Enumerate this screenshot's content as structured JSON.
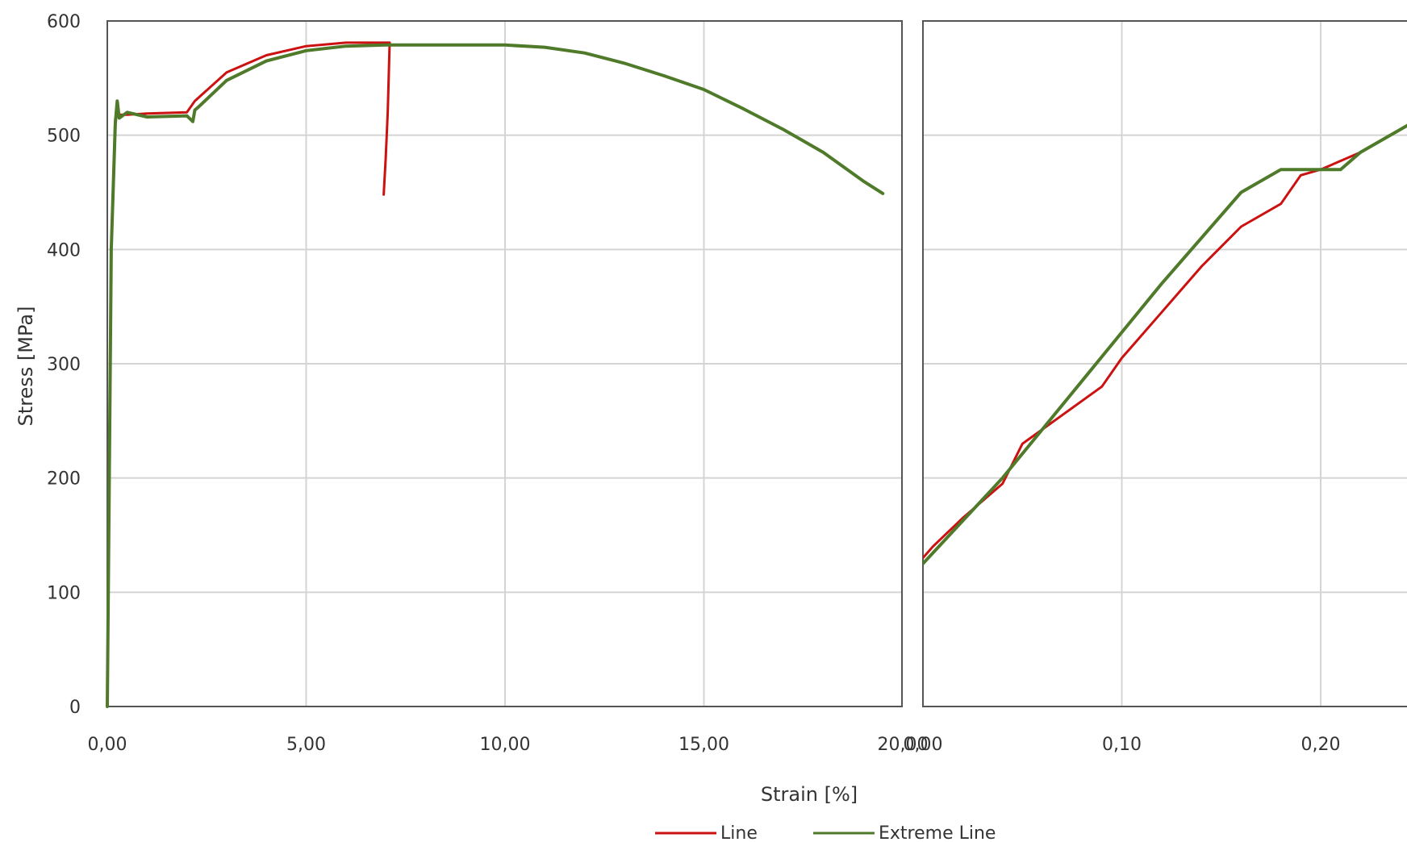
{
  "colors": {
    "line": "#cc1111",
    "extreme": "#4e7a2a",
    "grid": "#d4d4d4",
    "frame": "#555555"
  },
  "chart_data": [
    {
      "type": "line",
      "title": "",
      "xlabel": "Strain [%]",
      "ylabel": "Stress [MPa]",
      "xlim": [
        0,
        20
      ],
      "ylim": [
        0,
        600
      ],
      "xticks": [
        "0,00",
        "5,00",
        "10,00",
        "15,00",
        "20,00"
      ],
      "yticks": [
        "0",
        "100",
        "200",
        "300",
        "400",
        "500",
        "600"
      ],
      "grid": true,
      "series": [
        {
          "name": "Line",
          "x": [
            0,
            0.1,
            0.2,
            0.3,
            0.5,
            1,
            2,
            2.2,
            3,
            4,
            5,
            6,
            7,
            7.1,
            7.05,
            7.0,
            6.95
          ],
          "y": [
            0,
            400,
            515,
            518,
            518,
            519,
            520,
            530,
            555,
            570,
            578,
            581,
            581,
            581,
            520,
            480,
            448
          ]
        },
        {
          "name": "Extreme Line",
          "x": [
            0,
            0.1,
            0.2,
            0.25,
            0.3,
            0.5,
            1,
            2,
            2.15,
            2.2,
            2.3,
            3,
            4,
            5,
            6,
            7,
            8,
            9,
            10,
            11,
            12,
            13,
            14,
            15,
            16,
            17,
            18,
            19,
            19.5
          ],
          "y": [
            0,
            400,
            510,
            530,
            515,
            520,
            516,
            517,
            512,
            522,
            525,
            548,
            565,
            574,
            578,
            579,
            579,
            579,
            579,
            577,
            572,
            563,
            552,
            540,
            523,
            505,
            485,
            460,
            449
          ]
        }
      ]
    },
    {
      "type": "line",
      "title": "",
      "xlabel": "Strain [%]",
      "ylabel": "Stress [MPa]",
      "xlim": [
        0,
        0.25
      ],
      "ylim": [
        0,
        600
      ],
      "xticks": [
        "0,00",
        "0,10",
        "0,20"
      ],
      "yticks": [
        "0",
        "100",
        "200",
        "300",
        "400",
        "500",
        "600"
      ],
      "grid": true,
      "series": [
        {
          "name": "Line",
          "x": [
            0,
            0.005,
            0.02,
            0.04,
            0.05,
            0.07,
            0.09,
            0.1,
            0.12,
            0.14,
            0.16,
            0.18,
            0.19,
            0.2,
            0.22,
            0.24,
            0.25
          ],
          "y": [
            130,
            140,
            165,
            195,
            230,
            255,
            280,
            305,
            345,
            385,
            420,
            440,
            465,
            470,
            485,
            505,
            515
          ]
        },
        {
          "name": "Extreme Line",
          "x": [
            0,
            0.04,
            0.08,
            0.12,
            0.16,
            0.18,
            0.2,
            0.21,
            0.22,
            0.24,
            0.25
          ],
          "y": [
            125,
            200,
            285,
            370,
            450,
            470,
            470,
            470,
            485,
            505,
            515
          ]
        }
      ]
    }
  ],
  "legend": {
    "items": [
      "Line",
      "Extreme Line"
    ]
  }
}
